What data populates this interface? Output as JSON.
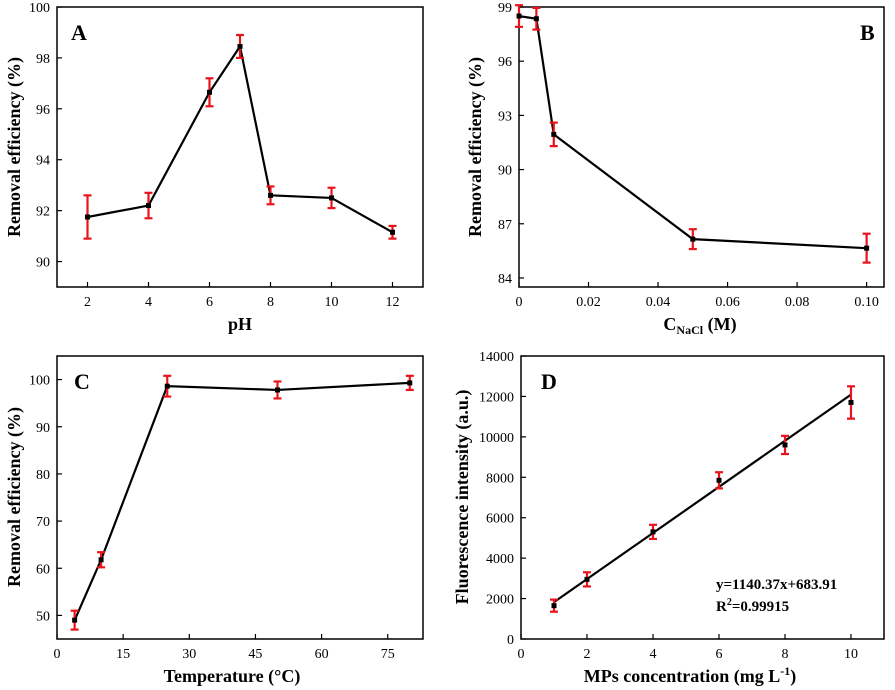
{
  "chart_data": [
    {
      "type": "line",
      "panel_label": "A",
      "xlabel": "pH",
      "ylabel": "Removal efficiency (%)",
      "xlim": [
        1,
        13
      ],
      "ylim": [
        89,
        100
      ],
      "x_ticks": [
        2,
        4,
        6,
        8,
        10,
        12
      ],
      "y_ticks": [
        90,
        92,
        94,
        96,
        98,
        100
      ],
      "grid": false,
      "series": [
        {
          "x": [
            2,
            4,
            6,
            7,
            8,
            10,
            12
          ],
          "y": [
            91.75,
            92.2,
            96.65,
            98.45,
            92.6,
            92.5,
            91.15
          ],
          "err": [
            0.85,
            0.5,
            0.55,
            0.45,
            0.35,
            0.4,
            0.25
          ]
        }
      ],
      "line_color": "#000000",
      "error_color": "#e8141b"
    },
    {
      "type": "line",
      "panel_label": "B",
      "xlabel": "C",
      "xlabel_sub": "NaCl",
      "xlabel_unit": " (M)",
      "ylabel": "Removal efficiency (%)",
      "xlim": [
        0,
        0.105
      ],
      "ylim": [
        83.5,
        99
      ],
      "x_ticks": [
        0,
        0.02,
        0.04,
        0.06,
        0.08,
        0.1
      ],
      "x_tick_labels": [
        "0",
        "0.02",
        "0.04",
        "0.06",
        "0.08",
        "0.10"
      ],
      "y_ticks": [
        84,
        87,
        90,
        93,
        96,
        99
      ],
      "grid": false,
      "series": [
        {
          "x": [
            0,
            0.005,
            0.01,
            0.05,
            0.1
          ],
          "y": [
            98.5,
            98.35,
            91.95,
            86.15,
            85.65
          ],
          "err": [
            0.6,
            0.6,
            0.65,
            0.55,
            0.8
          ]
        }
      ],
      "line_color": "#000000",
      "error_color": "#e8141b"
    },
    {
      "type": "line",
      "panel_label": "C",
      "xlabel": "Temperature (°C)",
      "ylabel": "Removal efficiency (%)",
      "xlim": [
        0,
        83
      ],
      "ylim": [
        45,
        105
      ],
      "x_ticks": [
        0,
        15,
        30,
        45,
        60,
        75
      ],
      "y_ticks": [
        50,
        60,
        70,
        80,
        90,
        100
      ],
      "grid": false,
      "series": [
        {
          "x": [
            4,
            10,
            25,
            50,
            80
          ],
          "y": [
            49,
            61.8,
            98.6,
            97.8,
            99.3
          ],
          "err": [
            2,
            1.6,
            2.2,
            1.8,
            1.5
          ]
        }
      ],
      "line_color": "#000000",
      "error_color": "#e8141b"
    },
    {
      "type": "scatter",
      "panel_label": "D",
      "xlabel": "MPs concentration (mg L",
      "xlabel_sup": "-1",
      "xlabel_tail": ")",
      "ylabel": "Fluorescence intensity (a.u.)",
      "xlim": [
        0,
        11
      ],
      "ylim": [
        0,
        14000
      ],
      "x_ticks": [
        0,
        2,
        4,
        6,
        8,
        10
      ],
      "y_ticks": [
        0,
        2000,
        4000,
        6000,
        8000,
        10000,
        12000,
        14000
      ],
      "grid": false,
      "series": [
        {
          "x": [
            1,
            2,
            4,
            6,
            8,
            10
          ],
          "y": [
            1650,
            2950,
            5300,
            7850,
            9600,
            11700
          ],
          "err": [
            300,
            350,
            350,
            400,
            450,
            800
          ]
        }
      ],
      "fit": {
        "slope": 1140.37,
        "intercept": 683.91,
        "x_range": [
          1,
          10
        ]
      },
      "annotation_equation": "y=1140.37x+683.91",
      "annotation_r2_prefix": "R",
      "annotation_r2_sup": "2",
      "annotation_r2_value": "=0.99915",
      "line_color": "#000000",
      "error_color": "#e8141b"
    }
  ]
}
